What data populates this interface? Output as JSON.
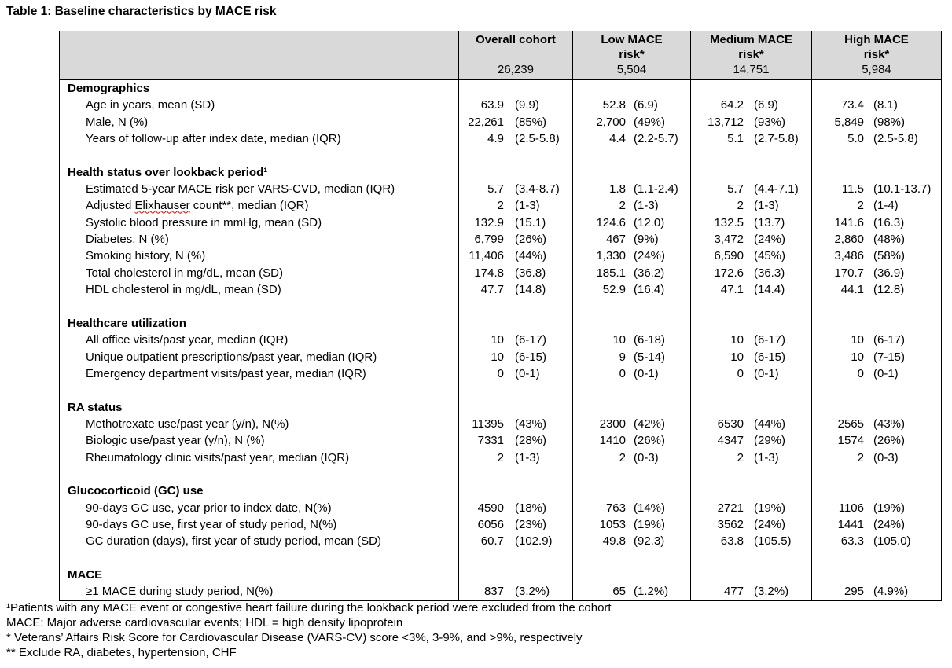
{
  "title": "Table 1: Baseline characteristics by MACE risk",
  "columns": [
    {
      "lines": [
        "Overall cohort",
        ""
      ],
      "n": "26,239"
    },
    {
      "lines": [
        "Low MACE",
        "risk*"
      ],
      "n": "5,504"
    },
    {
      "lines": [
        "Medium MACE",
        "risk*"
      ],
      "n": "14,751"
    },
    {
      "lines": [
        "High MACE",
        "risk*"
      ],
      "n": "5,984"
    }
  ],
  "sections": [
    {
      "title": "Demographics",
      "rows": [
        {
          "label": "Age in years, mean (SD)",
          "values": [
            [
              "63.9",
              "(9.9)"
            ],
            [
              "52.8",
              "(6.9)"
            ],
            [
              "64.2",
              "(6.9)"
            ],
            [
              "73.4",
              "(8.1)"
            ]
          ]
        },
        {
          "label": "Male, N (%)",
          "values": [
            [
              "22,261",
              "(85%)"
            ],
            [
              "2,700",
              "(49%)"
            ],
            [
              "13,712",
              "(93%)"
            ],
            [
              "5,849",
              "(98%)"
            ]
          ]
        },
        {
          "label": "Years of follow-up after index date, median (IQR)",
          "values": [
            [
              "4.9",
              "(2.5-5.8)"
            ],
            [
              "4.4",
              "(2.2-5.7)"
            ],
            [
              "5.1",
              "(2.7-5.8)"
            ],
            [
              "5.0",
              "(2.5-5.8)"
            ]
          ]
        }
      ]
    },
    {
      "title": "Health status over lookback period¹",
      "rows": [
        {
          "label": "Estimated 5-year MACE risk per VARS-CVD, median (IQR)",
          "values": [
            [
              "5.7",
              "(3.4-8.7)"
            ],
            [
              "1.8",
              "(1.1-2.4)"
            ],
            [
              "5.7",
              "(4.4-7.1)"
            ],
            [
              "11.5",
              "(10.1-13.7)"
            ]
          ]
        },
        {
          "label": "Adjusted Elixhauser count**, median (IQR)",
          "values": [
            [
              "2",
              "(1-3)"
            ],
            [
              "2",
              "(1-3)"
            ],
            [
              "2",
              "(1-3)"
            ],
            [
              "2",
              "(1-4)"
            ]
          ]
        },
        {
          "label": "Systolic blood pressure in mmHg, mean (SD)",
          "values": [
            [
              "132.9",
              "(15.1)"
            ],
            [
              "124.6",
              "(12.0)"
            ],
            [
              "132.5",
              "(13.7)"
            ],
            [
              "141.6",
              "(16.3)"
            ]
          ]
        },
        {
          "label": "Diabetes, N (%)",
          "values": [
            [
              "6,799",
              "(26%)"
            ],
            [
              "467",
              "(9%)"
            ],
            [
              "3,472",
              "(24%)"
            ],
            [
              "2,860",
              "(48%)"
            ]
          ]
        },
        {
          "label": "Smoking history, N (%)",
          "values": [
            [
              "11,406",
              "(44%)"
            ],
            [
              "1,330",
              "(24%)"
            ],
            [
              "6,590",
              "(45%)"
            ],
            [
              "3,486",
              "(58%)"
            ]
          ]
        },
        {
          "label": "Total cholesterol in mg/dL, mean (SD)",
          "values": [
            [
              "174.8",
              "(36.8)"
            ],
            [
              "185.1",
              "(36.2)"
            ],
            [
              "172.6",
              "(36.3)"
            ],
            [
              "170.7",
              "(36.9)"
            ]
          ]
        },
        {
          "label": "HDL cholesterol in mg/dL, mean (SD)",
          "values": [
            [
              "47.7",
              "(14.8)"
            ],
            [
              "52.9",
              "(16.4)"
            ],
            [
              "47.1",
              "(14.4)"
            ],
            [
              "44.1",
              "(12.8)"
            ]
          ]
        }
      ]
    },
    {
      "title": "Healthcare utilization",
      "rows": [
        {
          "label": "All office visits/past year, median (IQR)",
          "values": [
            [
              "10",
              "(6-17)"
            ],
            [
              "10",
              "(6-18)"
            ],
            [
              "10",
              "(6-17)"
            ],
            [
              "10",
              "(6-17)"
            ]
          ]
        },
        {
          "label": "Unique outpatient prescriptions/past year, median (IQR)",
          "values": [
            [
              "10",
              "(6-15)"
            ],
            [
              "9",
              "(5-14)"
            ],
            [
              "10",
              "(6-15)"
            ],
            [
              "10",
              "(7-15)"
            ]
          ]
        },
        {
          "label": "Emergency department visits/past year, median (IQR)",
          "values": [
            [
              "0",
              "(0-1)"
            ],
            [
              "0",
              "(0-1)"
            ],
            [
              "0",
              "(0-1)"
            ],
            [
              "0",
              "(0-1)"
            ]
          ]
        }
      ]
    },
    {
      "title": "RA status",
      "rows": [
        {
          "label": "Methotrexate use/past year (y/n), N(%)",
          "values": [
            [
              "11395",
              "(43%)"
            ],
            [
              "2300",
              "(42%)"
            ],
            [
              "6530",
              "(44%)"
            ],
            [
              "2565",
              "(43%)"
            ]
          ]
        },
        {
          "label": "Biologic use/past year (y/n), N (%)",
          "values": [
            [
              "7331",
              "(28%)"
            ],
            [
              "1410",
              "(26%)"
            ],
            [
              "4347",
              "(29%)"
            ],
            [
              "1574",
              "(26%)"
            ]
          ]
        },
        {
          "label": "Rheumatology clinic visits/past year, median (IQR)",
          "values": [
            [
              "2",
              "(1-3)"
            ],
            [
              "2",
              "(0-3)"
            ],
            [
              "2",
              "(1-3)"
            ],
            [
              "2",
              "(0-3)"
            ]
          ]
        }
      ]
    },
    {
      "title": "Glucocorticoid (GC) use",
      "rows": [
        {
          "label": "90-days GC use, year prior to index date, N(%)",
          "values": [
            [
              "4590",
              "(18%)"
            ],
            [
              "763",
              "(14%)"
            ],
            [
              "2721",
              "(19%)"
            ],
            [
              "1106",
              "(19%)"
            ]
          ]
        },
        {
          "label": "90-days GC use, first year of study period, N(%)",
          "values": [
            [
              "6056",
              "(23%)"
            ],
            [
              "1053",
              "(19%)"
            ],
            [
              "3562",
              "(24%)"
            ],
            [
              "1441",
              "(24%)"
            ]
          ]
        },
        {
          "label": "GC duration (days), first year of study period, mean (SD)",
          "values": [
            [
              "60.7",
              "(102.9)"
            ],
            [
              "49.8",
              "(92.3)"
            ],
            [
              "63.8",
              "(105.5)"
            ],
            [
              "63.3",
              "(105.0)"
            ]
          ]
        }
      ]
    },
    {
      "title": "MACE",
      "rows": [
        {
          "label": "≥1 MACE during study period, N(%)",
          "values": [
            [
              "837",
              "(3.2%)"
            ],
            [
              "65",
              "(1.2%)"
            ],
            [
              "477",
              "(3.2%)"
            ],
            [
              "295",
              "(4.9%)"
            ]
          ]
        }
      ]
    }
  ],
  "footnotes": [
    "¹Patients with any MACE event or congestive heart failure during the lookback period were excluded from the cohort",
    "MACE: Major adverse cardiovascular events; HDL = high density lipoprotein",
    "* Veterans’ Affairs Risk Score for Cardiovascular Disease (VARS-CV) score <3%, 3-9%, and >9%, respectively",
    "** Exclude RA, diabetes, hypertension, CHF"
  ]
}
